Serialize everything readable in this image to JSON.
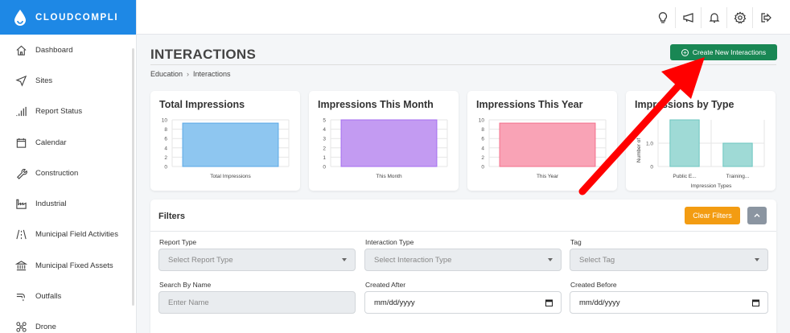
{
  "brand": {
    "name": "CLOUDCOMPLI"
  },
  "sidebar": {
    "items": [
      {
        "label": "Dashboard",
        "icon": "home-icon"
      },
      {
        "label": "Sites",
        "icon": "send-icon"
      },
      {
        "label": "Report Status",
        "icon": "bar-signal-icon"
      },
      {
        "label": "Calendar",
        "icon": "calendar-icon"
      },
      {
        "label": "Construction",
        "icon": "wrench-icon"
      },
      {
        "label": "Industrial",
        "icon": "factory-icon"
      },
      {
        "label": "Municipal Field Activities",
        "icon": "road-icon"
      },
      {
        "label": "Municipal Fixed Assets",
        "icon": "bank-icon"
      },
      {
        "label": "Outfalls",
        "icon": "pipe-icon"
      },
      {
        "label": "Drone",
        "icon": "drone-icon"
      }
    ]
  },
  "header": {
    "icons": [
      "lightbulb-icon",
      "megaphone-icon",
      "bell-icon",
      "gear-icon",
      "logout-icon"
    ]
  },
  "page": {
    "title": "INTERACTIONS",
    "breadcrumb": [
      "Education",
      "Interactions"
    ],
    "breadcrumb_sep": "›",
    "create_button": "Create New Interactions"
  },
  "colors": {
    "brand": "#1e88e5",
    "create_button": "#198754",
    "clear_button": "#f39c12",
    "arrow": "#ff0000"
  },
  "chart_data": [
    {
      "type": "bar",
      "title": "Total Impressions",
      "categories": [
        "Total Impressions"
      ],
      "values": [
        9.3
      ],
      "ylim": [
        0,
        10
      ],
      "yticks": [
        "0",
        "2",
        "4",
        "6",
        "8",
        "10"
      ],
      "color": "#8ec6f0",
      "border": "#5aa8e6"
    },
    {
      "type": "bar",
      "title": "Impressions This Month",
      "categories": [
        "This Month"
      ],
      "values": [
        5
      ],
      "ylim": [
        0,
        5
      ],
      "yticks": [
        "0",
        "1",
        "2",
        "3",
        "4",
        "5"
      ],
      "color": "#c39bf2",
      "border": "#a66ef0"
    },
    {
      "type": "bar",
      "title": "Impressions This Year",
      "categories": [
        "This Year"
      ],
      "values": [
        9.3
      ],
      "ylim": [
        0,
        10
      ],
      "yticks": [
        "0",
        "2",
        "4",
        "6",
        "8",
        "10"
      ],
      "color": "#f9a3b6",
      "border": "#f36f8b"
    },
    {
      "type": "bar",
      "title": "Impressions by Type",
      "categories": [
        "Public E...",
        "Training..."
      ],
      "values": [
        2,
        1
      ],
      "ylim": [
        0,
        2
      ],
      "yticks": [
        "0",
        "1.0"
      ],
      "xlabel": "Impression Types",
      "ylabel": "Number of",
      "color": "#9fdad6",
      "border": "#6cc6c0"
    }
  ],
  "filters": {
    "title": "Filters",
    "clear_label": "Clear Filters",
    "fields": [
      {
        "label": "Report Type",
        "placeholder": "Select Report Type",
        "kind": "select"
      },
      {
        "label": "Interaction Type",
        "placeholder": "Select Interaction Type",
        "kind": "select"
      },
      {
        "label": "Tag",
        "placeholder": "Select Tag",
        "kind": "select"
      },
      {
        "label": "Search By Name",
        "placeholder": "Enter Name",
        "kind": "text"
      },
      {
        "label": "Created After",
        "value": "mm/dd/yyyy",
        "kind": "date"
      },
      {
        "label": "Created Before",
        "value": "mm/dd/yyyy",
        "kind": "date"
      }
    ]
  }
}
